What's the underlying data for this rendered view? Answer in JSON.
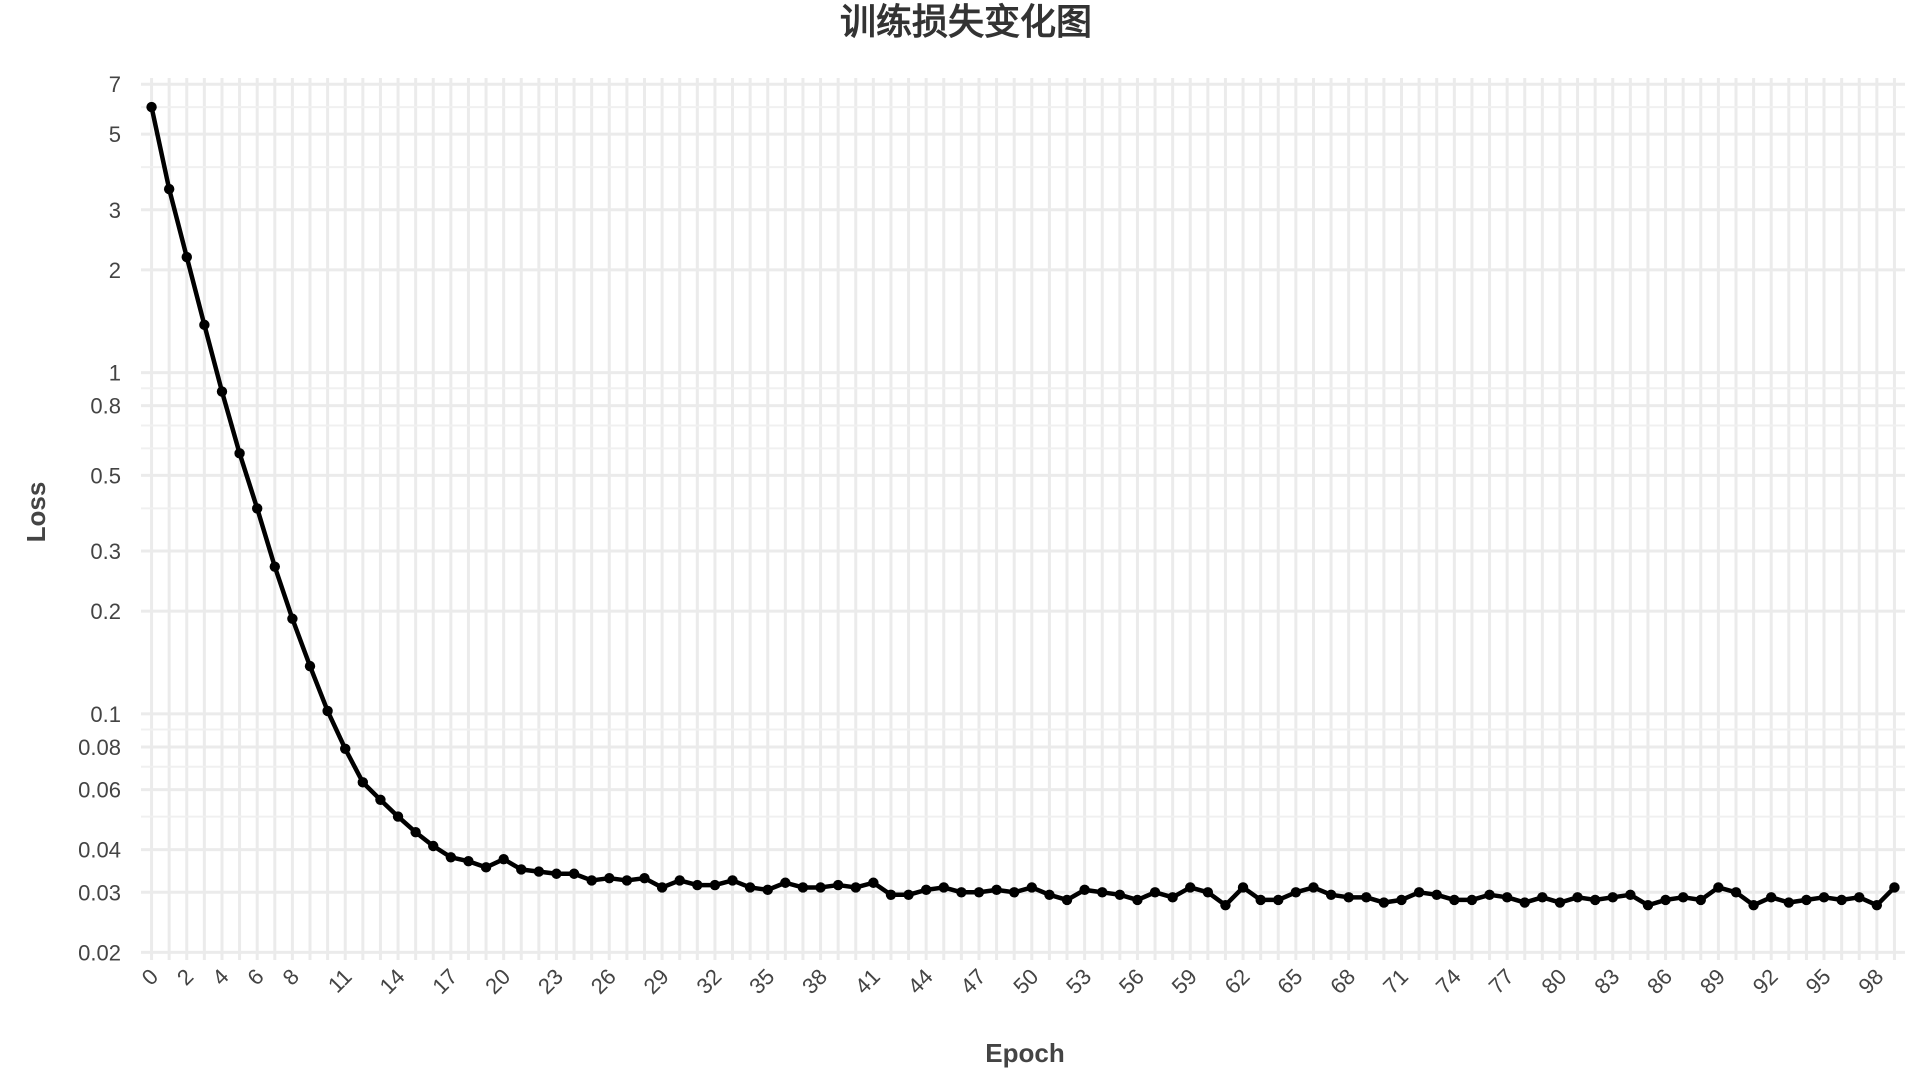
{
  "chart_data": {
    "type": "line",
    "title": "训练损失变化图",
    "xlabel": "Epoch",
    "ylabel": "Loss",
    "y_scale": "log",
    "ylim": [
      0.019,
      7.3
    ],
    "xlim": [
      0,
      99
    ],
    "grid": true,
    "x_ticks": [
      0,
      2,
      4,
      6,
      8,
      11,
      14,
      17,
      20,
      23,
      26,
      29,
      32,
      35,
      38,
      41,
      44,
      47,
      50,
      53,
      56,
      59,
      62,
      65,
      68,
      71,
      74,
      77,
      80,
      83,
      86,
      89,
      92,
      95,
      98
    ],
    "x_tick_labels": [
      "0",
      "2",
      "4",
      "6",
      "8",
      "11",
      "14",
      "17",
      "20",
      "23",
      "26",
      "29",
      "32",
      "35",
      "38",
      "41",
      "44",
      "47",
      "50",
      "53",
      "56",
      "59",
      "62",
      "65",
      "68",
      "71",
      "74",
      "77",
      "80",
      "83",
      "86",
      "89",
      "92",
      "95",
      "98"
    ],
    "y_ticks": [
      0.02,
      0.03,
      0.04,
      0.06,
      0.08,
      0.1,
      0.2,
      0.3,
      0.5,
      0.8,
      1,
      2,
      3,
      5,
      7
    ],
    "y_tick_labels": [
      "0.02",
      "0.03",
      "0.04",
      "0.06",
      "0.08",
      "0.1",
      "0.2",
      "0.3",
      "0.5",
      "0.8",
      "1",
      "2",
      "3",
      "5",
      "7"
    ],
    "series": [
      {
        "color": "#000000",
        "x": [
          0,
          1,
          2,
          3,
          4,
          5,
          6,
          7,
          8,
          9,
          10,
          11,
          12,
          13,
          14,
          15,
          16,
          17,
          18,
          19,
          20,
          21,
          22,
          23,
          24,
          25,
          26,
          27,
          28,
          29,
          30,
          31,
          32,
          33,
          34,
          35,
          36,
          37,
          38,
          39,
          40,
          41,
          42,
          43,
          44,
          45,
          46,
          47,
          48,
          49,
          50,
          51,
          52,
          53,
          54,
          55,
          56,
          57,
          58,
          59,
          60,
          61,
          62,
          63,
          64,
          65,
          66,
          67,
          68,
          69,
          70,
          71,
          72,
          73,
          74,
          75,
          76,
          77,
          78,
          79,
          80,
          81,
          82,
          83,
          84,
          85,
          86,
          87,
          88,
          89,
          90,
          91,
          92,
          93,
          94,
          95,
          96,
          97,
          98,
          99
        ],
        "y": [
          6.0,
          3.45,
          2.18,
          1.38,
          0.88,
          0.58,
          0.4,
          0.27,
          0.19,
          0.138,
          0.102,
          0.079,
          0.063,
          0.056,
          0.05,
          0.045,
          0.041,
          0.038,
          0.037,
          0.0355,
          0.0375,
          0.035,
          0.0345,
          0.034,
          0.034,
          0.0325,
          0.033,
          0.0325,
          0.033,
          0.031,
          0.0325,
          0.0315,
          0.0315,
          0.0325,
          0.031,
          0.0305,
          0.032,
          0.031,
          0.031,
          0.0315,
          0.031,
          0.032,
          0.0295,
          0.0295,
          0.0305,
          0.031,
          0.03,
          0.03,
          0.0305,
          0.03,
          0.031,
          0.0295,
          0.0285,
          0.0305,
          0.03,
          0.0295,
          0.0285,
          0.03,
          0.029,
          0.031,
          0.03,
          0.0275,
          0.031,
          0.0285,
          0.0285,
          0.03,
          0.031,
          0.0295,
          0.029,
          0.029,
          0.028,
          0.0285,
          0.03,
          0.0295,
          0.0285,
          0.0285,
          0.0295,
          0.029,
          0.028,
          0.029,
          0.028,
          0.029,
          0.0285,
          0.029,
          0.0295,
          0.0275,
          0.0285,
          0.029,
          0.0285,
          0.031,
          0.03,
          0.0275,
          0.029,
          0.028,
          0.0285,
          0.029,
          0.0285,
          0.029,
          0.0275,
          0.031
        ]
      }
    ]
  }
}
